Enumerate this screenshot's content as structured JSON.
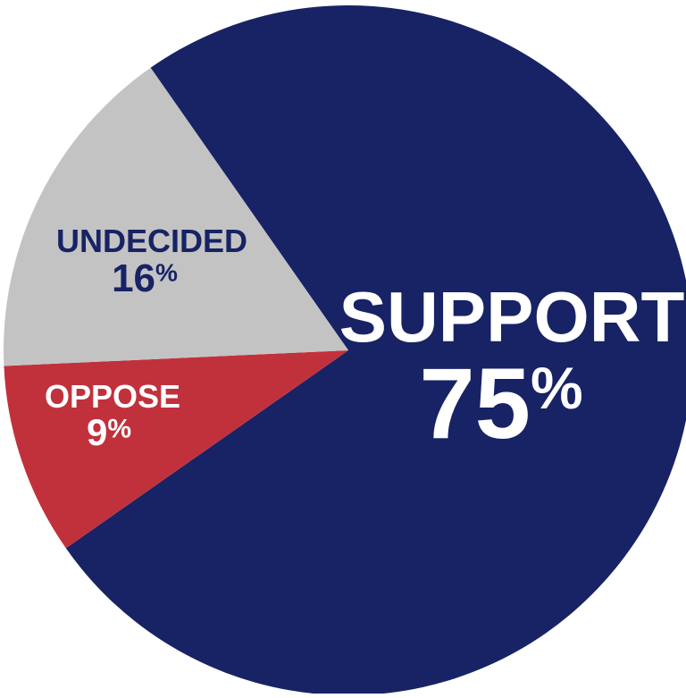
{
  "chart_data": {
    "type": "pie",
    "title": "",
    "slices": [
      {
        "label": "SUPPORT",
        "value": 75,
        "value_text": "75",
        "pct_sign": "%",
        "color": "#172364",
        "text_color": "#ffffff"
      },
      {
        "label": "OPPOSE",
        "value": 9,
        "value_text": "9",
        "pct_sign": "%",
        "color": "#c1313c",
        "text_color": "#ffffff"
      },
      {
        "label": "UNDECIDED",
        "value": 16,
        "value_text": "16",
        "pct_sign": "%",
        "color": "#c3c3c3",
        "text_color": "#172364"
      }
    ],
    "start_angle_deg": 325,
    "direction": "clockwise",
    "legend": "none"
  }
}
